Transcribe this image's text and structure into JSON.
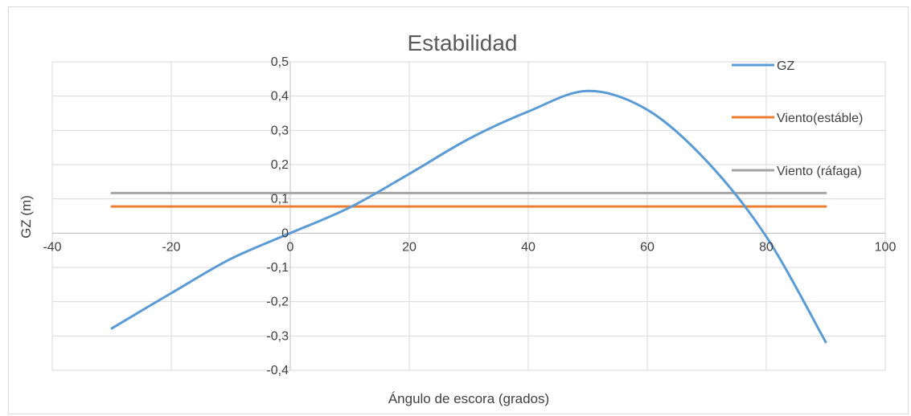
{
  "chart_data": {
    "type": "line",
    "title": "Estabilidad",
    "xlabel": "Ángulo de escora (grados)",
    "ylabel": "GZ (m)",
    "xlim": [
      -40,
      100
    ],
    "ylim": [
      -0.4,
      0.5
    ],
    "x_ticks": [
      -40,
      -20,
      0,
      20,
      40,
      60,
      80,
      100
    ],
    "x_tick_labels": [
      "-40",
      "-20",
      "0",
      "20",
      "40",
      "60",
      "80",
      "100"
    ],
    "y_ticks": [
      0.5,
      0.4,
      0.3,
      0.2,
      0.1,
      0,
      -0.1,
      -0.2,
      -0.3,
      -0.4
    ],
    "y_tick_labels": [
      "0,5",
      "0,4",
      "0,3",
      "0,2",
      "0,1",
      "0",
      "-0,1",
      "-0,2",
      "-0,3",
      "-0,4"
    ],
    "grid": true,
    "legend_position": "right",
    "series": [
      {
        "name": "GZ",
        "color": "#5b9bd5",
        "points": [
          [
            -30,
            -0.278
          ],
          [
            -20,
            -0.175
          ],
          [
            -10,
            -0.075
          ],
          [
            0,
            0.0
          ],
          [
            10,
            0.075
          ],
          [
            20,
            0.173
          ],
          [
            30,
            0.275
          ],
          [
            40,
            0.355
          ],
          [
            50,
            0.415
          ],
          [
            60,
            0.36
          ],
          [
            70,
            0.21
          ],
          [
            80,
            -0.01
          ],
          [
            90,
            -0.318
          ]
        ]
      },
      {
        "name": "Viento(estáble)",
        "color": "#ed7d31",
        "points": [
          [
            -30,
            0.078
          ],
          [
            90,
            0.078
          ]
        ]
      },
      {
        "name": "Viento (ráfaga)",
        "color": "#a5a5a5",
        "points": [
          [
            -30,
            0.117
          ],
          [
            90,
            0.117
          ]
        ]
      }
    ]
  }
}
